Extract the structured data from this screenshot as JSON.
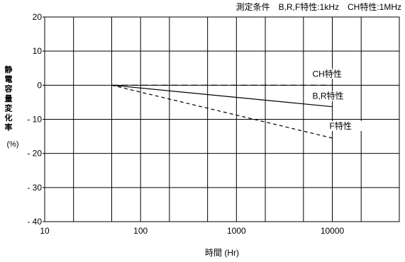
{
  "chart_data": {
    "type": "line",
    "note": "測定条件　B,R,F特性:1kHz　CH特性:1MHz",
    "xlabel": "時間 (Hr)",
    "ylabel": "静電容量変化率",
    "ylabel_unit": "(%)",
    "xscale": "log",
    "xlim": [
      10,
      50000
    ],
    "ylim": [
      -40,
      20
    ],
    "xticks": [
      10,
      100,
      1000,
      10000
    ],
    "xtick_labels": [
      "10",
      "100",
      "1000",
      "10000"
    ],
    "yticks": [
      20,
      10,
      0,
      -10,
      -20,
      -30,
      -40
    ],
    "ytick_labels": [
      "20",
      "10",
      "0",
      "- 10",
      "- 20",
      "- 30",
      "- 40"
    ],
    "grid": true,
    "series": [
      {
        "name": "CH特性",
        "style": "dash-long",
        "color": "#000000",
        "x": [
          50,
          10000
        ],
        "y": [
          0,
          0
        ]
      },
      {
        "name": "B,R特性",
        "style": "solid",
        "color": "#000000",
        "x": [
          50,
          10000
        ],
        "y": [
          0,
          -6.3
        ]
      },
      {
        "name": "F特性",
        "style": "dash-short",
        "color": "#000000",
        "x": [
          50,
          10000
        ],
        "y": [
          0,
          -15.5
        ]
      }
    ]
  }
}
